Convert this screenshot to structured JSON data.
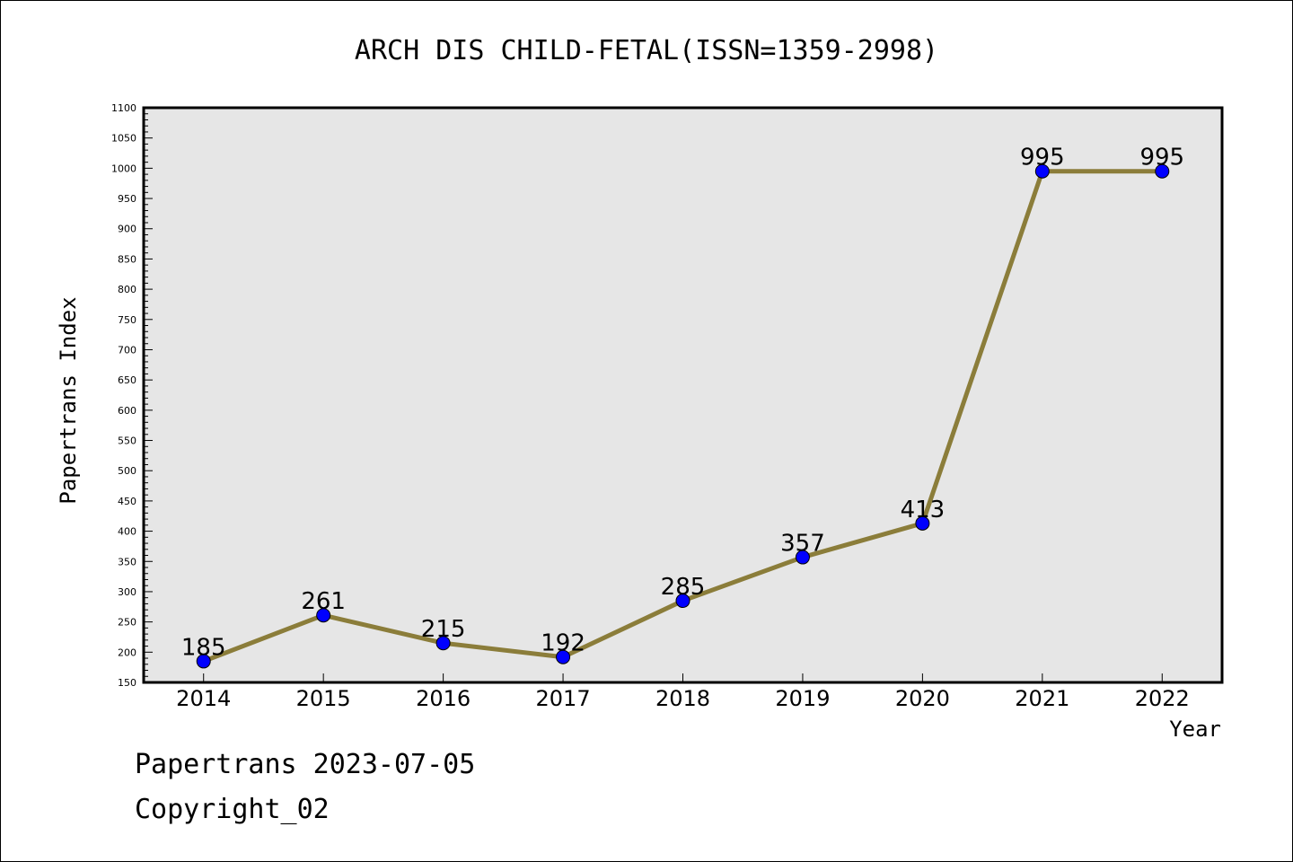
{
  "chart_data": {
    "type": "line",
    "title": "ARCH DIS CHILD-FETAL(ISSN=1359-2998)",
    "xlabel": "Year",
    "ylabel": "Papertrans Index",
    "categories": [
      "2014",
      "2015",
      "2016",
      "2017",
      "2018",
      "2019",
      "2020",
      "2021",
      "2022"
    ],
    "series": [
      {
        "values": [
          185,
          261,
          215,
          192,
          285,
          357,
          413,
          995,
          995
        ]
      }
    ],
    "data_labels": [
      "185",
      "261",
      "215",
      "192",
      "285",
      "357",
      "413",
      "995",
      "995"
    ],
    "ylim": [
      150,
      1100
    ],
    "yticks": [
      150,
      200,
      250,
      300,
      350,
      400,
      450,
      500,
      550,
      600,
      650,
      700,
      750,
      800,
      850,
      900,
      950,
      1000,
      1050,
      1100
    ],
    "grid": false,
    "legend": "none",
    "colors": {
      "line": "#8b7d3a",
      "marker": "#0000ff",
      "plot_background": "#e6e6e6",
      "axes": "#000000"
    }
  },
  "footer": {
    "line1": "Papertrans 2023-07-05",
    "line2": "Copyright_02"
  }
}
